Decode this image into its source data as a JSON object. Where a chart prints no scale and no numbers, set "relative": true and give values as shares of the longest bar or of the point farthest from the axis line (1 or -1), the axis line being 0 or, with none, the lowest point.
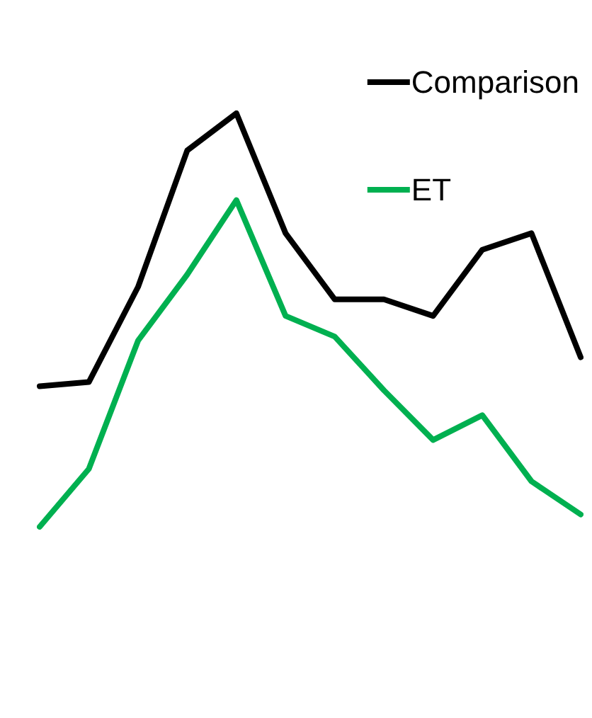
{
  "chart_data": {
    "type": "line",
    "relative": true,
    "categories": [
      null,
      null,
      null,
      null,
      null,
      null,
      null,
      null,
      null,
      null,
      null,
      null
    ],
    "series": [
      {
        "name": "Comparison",
        "color": "#000000",
        "values": [
          0.34,
          0.35,
          0.58,
          0.91,
          1,
          0.71,
          0.55,
          0.55,
          0.51,
          0.67,
          0.71,
          0.41
        ]
      },
      {
        "name": "ET",
        "color": "#00b050",
        "values": [
          0,
          0.14,
          0.45,
          0.61,
          0.79,
          0.51,
          0.46,
          0.33,
          0.21,
          0.27,
          0.11,
          0.03
        ]
      }
    ],
    "legend": "top right",
    "marker": "none",
    "line_style": "solid"
  }
}
